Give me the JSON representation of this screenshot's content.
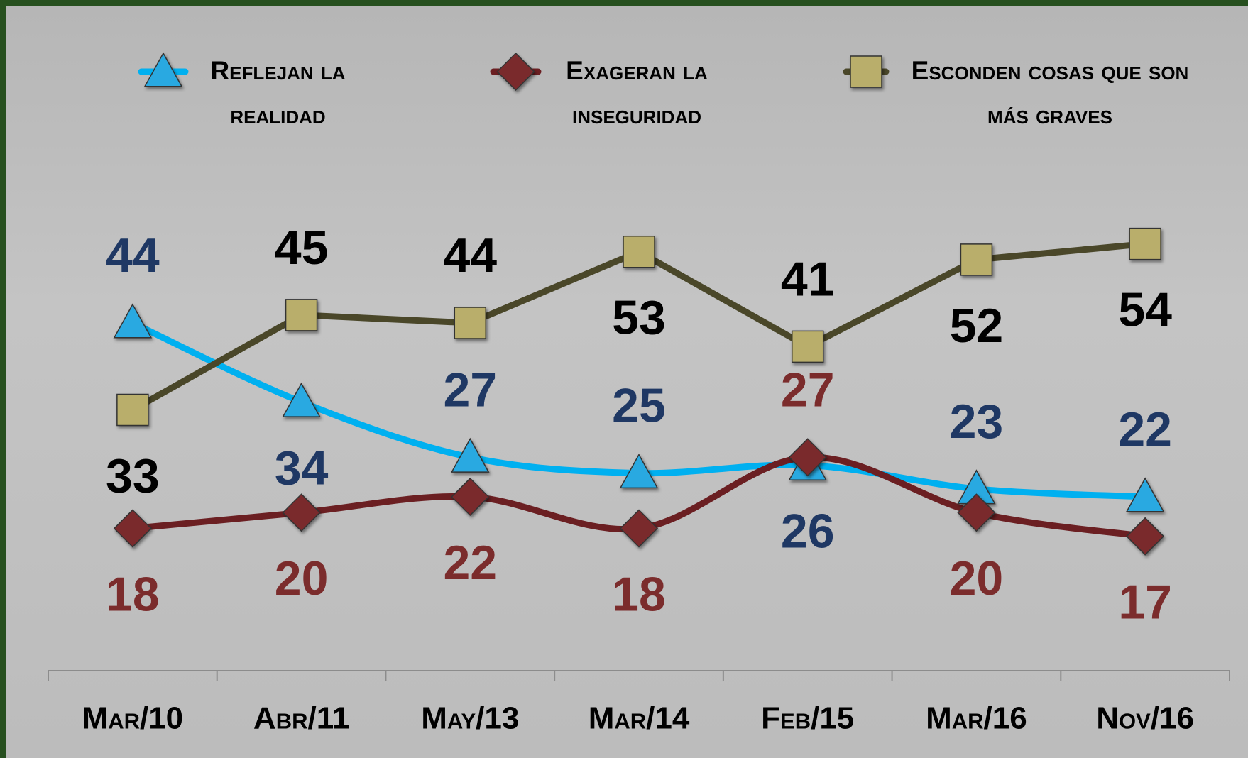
{
  "chart_data": {
    "type": "line",
    "categories": [
      "Mar/10",
      "Abr/11",
      "May/13",
      "Mar/14",
      "Feb/15",
      "Mar/16",
      "Nov/16"
    ],
    "series": [
      {
        "name": "Reflejan la realidad",
        "color": "#00b0f0",
        "marker": "triangle",
        "marker_color": "#29a9e1",
        "smooth": true,
        "label_color": "#1f3864",
        "values": [
          44,
          34,
          27,
          25,
          26,
          23,
          22
        ]
      },
      {
        "name": "Exageran la inseguridad",
        "color": "#6b1f22",
        "marker": "diamond",
        "marker_color": "#7a2a2c",
        "smooth": true,
        "label_color": "#7b2c2c",
        "values": [
          18,
          20,
          22,
          18,
          27,
          20,
          17
        ]
      },
      {
        "name": "Esconden cosas que son más graves",
        "color": "#4a4729",
        "marker": "square",
        "marker_color": "#b9ae6b",
        "smooth": false,
        "label_color": "#000000",
        "values": [
          33,
          45,
          44,
          53,
          41,
          52,
          54
        ]
      }
    ],
    "ylim": [
      0,
      80
    ]
  }
}
